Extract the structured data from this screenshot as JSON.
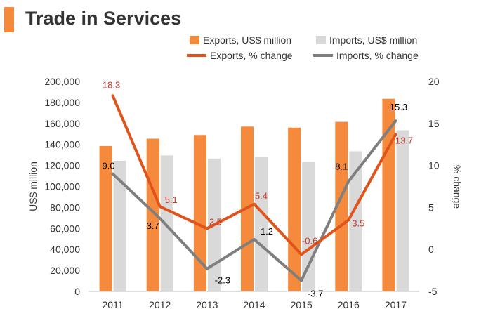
{
  "title": "Trade in Services",
  "chart_data": {
    "type": "bar+line",
    "categories": [
      "2011",
      "2012",
      "2013",
      "2014",
      "2015",
      "2016",
      "2017"
    ],
    "bar_series": [
      {
        "name": "Exports, US$ million",
        "color": "#f58a3c",
        "values": [
          138500,
          145500,
          149000,
          157000,
          156000,
          161500,
          183500
        ]
      },
      {
        "name": "Imports, US$ million",
        "color": "#d9d9d9",
        "values": [
          124500,
          129500,
          126500,
          128000,
          123500,
          133500,
          153500
        ]
      }
    ],
    "line_series": [
      {
        "name": "Exports, % change",
        "color": "#e0541c",
        "label_color": "#c0392b",
        "values": [
          18.3,
          5.1,
          2.5,
          5.4,
          -0.6,
          3.5,
          13.7
        ],
        "labels": [
          "18.3",
          "5.1",
          "2.5",
          "5.4",
          "-0.6",
          "3.5",
          "13.7"
        ]
      },
      {
        "name": "Imports, % change",
        "color": "#7f7f7f",
        "label_color": "#000000",
        "values": [
          9.0,
          3.7,
          -2.3,
          1.2,
          -3.7,
          8.1,
          15.3
        ],
        "labels": [
          "9.0",
          "3.7",
          "-2.3",
          "1.2",
          "-3.7",
          "8.1",
          "15.3"
        ]
      }
    ],
    "y_left": {
      "label": "US$ million",
      "min": 0,
      "max": 200000,
      "ticks": [
        "0",
        "20,000",
        "40,000",
        "60,000",
        "80,000",
        "100,000",
        "120,000",
        "140,000",
        "160,000",
        "180,000",
        "200,000"
      ]
    },
    "y_right": {
      "label": "% change",
      "min": -5,
      "max": 20,
      "ticks": [
        "-5",
        "0",
        "5",
        "10",
        "15",
        "20"
      ]
    },
    "legend_position": "top"
  }
}
